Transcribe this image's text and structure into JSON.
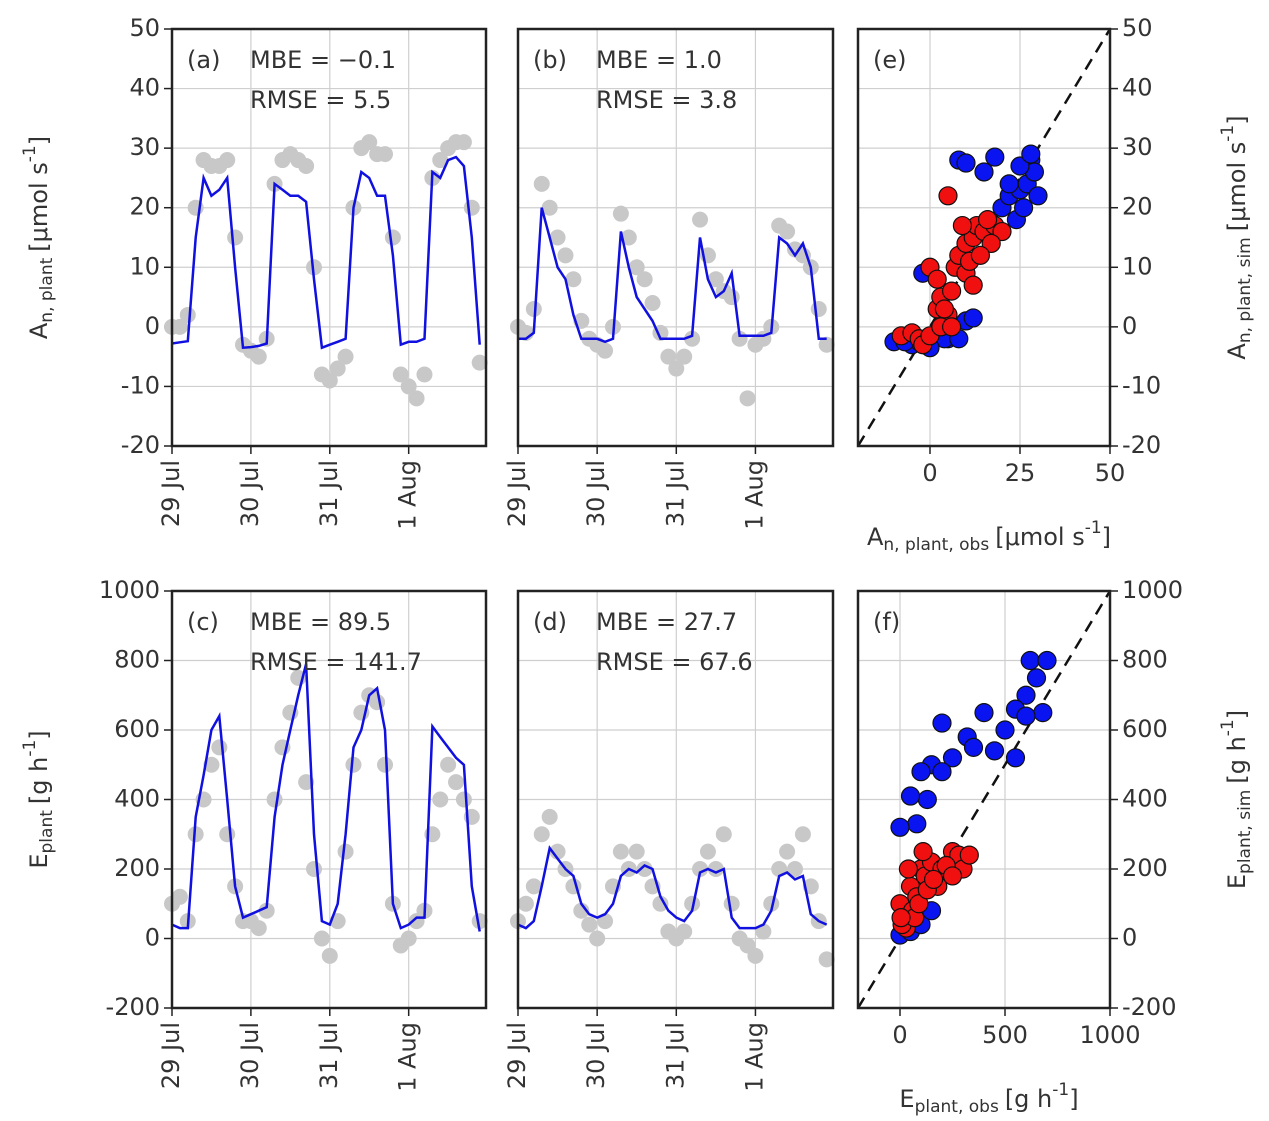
{
  "chart_data": [
    {
      "type": "line",
      "yaxis_side": "left",
      "grid": true,
      "annotations": [
        "(a)",
        "MBE = −0.1",
        "RMSE = 5.5"
      ],
      "ylabel": {
        "base": "A",
        "sub": "n, plant",
        "unit": "[μmol s",
        "sup": "-1",
        "end": "]"
      },
      "xlim": [
        0,
        3.98
      ],
      "xticks": [
        {
          "value": 0,
          "label": "29 Jul"
        },
        {
          "value": 1,
          "label": "30 Jul"
        },
        {
          "value": 2,
          "label": "31 Jul"
        },
        {
          "value": 3,
          "label": "1 Aug"
        }
      ],
      "ylim": [
        -20,
        50
      ],
      "yticks": [
        -20,
        -10,
        0,
        10,
        20,
        30,
        40,
        50
      ],
      "x": [
        0,
        0.1,
        0.2,
        0.3,
        0.4,
        0.5,
        0.6,
        0.7,
        0.8,
        0.9,
        1,
        1.1,
        1.2,
        1.3,
        1.4,
        1.5,
        1.6,
        1.7,
        1.8,
        1.9,
        2,
        2.1,
        2.2,
        2.3,
        2.4,
        2.5,
        2.6,
        2.7,
        2.8,
        2.9,
        3,
        3.1,
        3.2,
        3.3,
        3.4,
        3.5,
        3.6,
        3.7,
        3.8,
        3.9
      ],
      "series": [
        {
          "style": "markers",
          "color": "#c8c8c8",
          "values": [
            0,
            0,
            2,
            20,
            28,
            27,
            27,
            28,
            15,
            -3,
            -4,
            -5,
            -2,
            24,
            28,
            29,
            28,
            27,
            10,
            -8,
            -9,
            -7,
            -5,
            20,
            30,
            31,
            29,
            29,
            15,
            -8,
            -10,
            -12,
            -8,
            25,
            28,
            30,
            31,
            31,
            20,
            -6
          ]
        },
        {
          "style": "line",
          "color": "#1010e0",
          "values": [
            -2.8,
            -2.6,
            -2.4,
            15,
            25,
            22,
            23,
            25,
            10,
            -3.5,
            -3.4,
            -3.2,
            -2.8,
            24,
            23,
            22,
            22,
            21,
            8,
            -3.5,
            -3,
            -2.5,
            -2,
            20,
            26,
            25,
            22,
            22,
            12,
            -3,
            -2.5,
            -2.5,
            -2,
            26,
            25,
            28,
            28.5,
            27,
            15,
            -3
          ]
        }
      ]
    },
    {
      "type": "line",
      "yaxis_side": "none",
      "grid": true,
      "annotations": [
        "(b)",
        "MBE = 1.0",
        "RMSE = 3.8"
      ],
      "xlim": [
        0,
        3.98
      ],
      "xticks": [
        {
          "value": 0,
          "label": "29 Jul"
        },
        {
          "value": 1,
          "label": "30 Jul"
        },
        {
          "value": 2,
          "label": "31 Jul"
        },
        {
          "value": 3,
          "label": "1 Aug"
        }
      ],
      "ylim": [
        -20,
        50
      ],
      "yticks": [
        -20,
        -10,
        0,
        10,
        20,
        30,
        40,
        50
      ],
      "x": [
        0,
        0.1,
        0.2,
        0.3,
        0.4,
        0.5,
        0.6,
        0.7,
        0.8,
        0.9,
        1,
        1.1,
        1.2,
        1.3,
        1.4,
        1.5,
        1.6,
        1.7,
        1.8,
        1.9,
        2,
        2.1,
        2.2,
        2.3,
        2.4,
        2.5,
        2.6,
        2.7,
        2.8,
        2.9,
        3,
        3.1,
        3.2,
        3.3,
        3.4,
        3.5,
        3.6,
        3.7,
        3.8,
        3.9
      ],
      "series": [
        {
          "style": "markers",
          "color": "#c8c8c8",
          "values": [
            0,
            -1,
            3,
            24,
            20,
            15,
            12,
            8,
            1,
            -2,
            -3,
            -4,
            0,
            19,
            15,
            10,
            8,
            4,
            -1,
            -5,
            -7,
            -5,
            -2,
            18,
            12,
            8,
            6,
            5,
            -2,
            -12,
            -3,
            -2,
            0,
            17,
            16,
            13,
            12,
            10,
            3,
            -3
          ]
        },
        {
          "style": "line",
          "color": "#1010e0",
          "values": [
            -2,
            -2,
            -1,
            20,
            15,
            10,
            8,
            2,
            -2,
            -2,
            -2,
            -2.5,
            -2,
            16,
            10,
            5,
            3,
            1,
            -2,
            -2,
            -2,
            -2,
            -1.5,
            15,
            8,
            5,
            6,
            9,
            -1.5,
            -1.5,
            -1.5,
            -1.5,
            -1,
            15,
            14,
            12,
            14,
            10,
            -2,
            -2
          ]
        }
      ]
    },
    {
      "type": "scatter",
      "yaxis_side": "right",
      "grid": true,
      "diagonal": true,
      "annotations": [
        "(e)"
      ],
      "ylabel": {
        "base": "A",
        "sub": "n, plant, sim",
        "unit": "[μmol s",
        "sup": "-1",
        "end": "]"
      },
      "xlabel": {
        "base": "A",
        "sub": "n, plant, obs",
        "unit": "[μmol s",
        "sup": "-1",
        "end": "]"
      },
      "xlim": [
        -20,
        50
      ],
      "xticks": [
        0,
        25,
        50
      ],
      "ylim": [
        -20,
        50
      ],
      "yticks": [
        -20,
        -10,
        0,
        10,
        20,
        30,
        40,
        50
      ],
      "series": [
        {
          "color": "#0a14f0",
          "x": [
            -10,
            -5,
            -3,
            0,
            -2,
            10,
            12,
            5,
            8,
            10,
            18,
            15,
            20,
            22,
            25,
            27,
            28,
            29,
            24,
            22,
            25,
            30,
            26,
            28,
            4,
            8,
            -7,
            0,
            15
          ],
          "values": [
            -2.5,
            -3,
            -2.5,
            -2,
            9,
            1,
            1.5,
            -2,
            28,
            27.5,
            28.5,
            26,
            20,
            22,
            23,
            24,
            28,
            26,
            18,
            24,
            27,
            22,
            20,
            29,
            -2,
            -2,
            -2.5,
            -3.5,
            16
          ]
        },
        {
          "color": "#f01010",
          "x": [
            -8,
            -5,
            -3,
            -2,
            0,
            2,
            3,
            5,
            6,
            5,
            7,
            8,
            10,
            12,
            13,
            15,
            10,
            11,
            3,
            4,
            0,
            2,
            18,
            20,
            17,
            14,
            9,
            16,
            12,
            6
          ],
          "values": [
            -1.5,
            -1,
            -2,
            -3,
            -1.5,
            3,
            5,
            2,
            6,
            22,
            10,
            12,
            14,
            15,
            17,
            16,
            9,
            11,
            0,
            3,
            10,
            8,
            17,
            16,
            14,
            12,
            17,
            18,
            7,
            0
          ]
        }
      ]
    },
    {
      "type": "line",
      "yaxis_side": "left",
      "grid": true,
      "annotations": [
        "(c)",
        "MBE = 89.5",
        "RMSE = 141.7"
      ],
      "ylabel": {
        "base": "E",
        "sub": "plant",
        "unit": "[g h",
        "sup": "-1",
        "end": "]"
      },
      "xlim": [
        0,
        3.98
      ],
      "xticks": [
        {
          "value": 0,
          "label": "29 Jul"
        },
        {
          "value": 1,
          "label": "30 Jul"
        },
        {
          "value": 2,
          "label": "31 Jul"
        },
        {
          "value": 3,
          "label": "1 Aug"
        }
      ],
      "ylim": [
        -200,
        1000
      ],
      "yticks": [
        -200,
        0,
        200,
        400,
        600,
        800,
        1000
      ],
      "x": [
        0,
        0.1,
        0.2,
        0.3,
        0.4,
        0.5,
        0.6,
        0.7,
        0.8,
        0.9,
        1,
        1.1,
        1.2,
        1.3,
        1.4,
        1.5,
        1.6,
        1.7,
        1.8,
        1.9,
        2,
        2.1,
        2.2,
        2.3,
        2.4,
        2.5,
        2.6,
        2.7,
        2.8,
        2.9,
        3,
        3.1,
        3.2,
        3.3,
        3.4,
        3.5,
        3.6,
        3.7,
        3.8,
        3.9
      ],
      "series": [
        {
          "style": "markers",
          "color": "#c8c8c8",
          "values": [
            100,
            120,
            50,
            300,
            400,
            500,
            550,
            300,
            150,
            50,
            50,
            30,
            80,
            400,
            550,
            650,
            750,
            450,
            200,
            0,
            -50,
            50,
            250,
            500,
            650,
            700,
            680,
            500,
            100,
            -20,
            0,
            50,
            80,
            300,
            400,
            500,
            450,
            400,
            350,
            50
          ]
        },
        {
          "style": "line",
          "color": "#1010e0",
          "values": [
            40,
            30,
            30,
            350,
            470,
            600,
            640,
            400,
            150,
            60,
            70,
            80,
            90,
            350,
            500,
            600,
            700,
            790,
            300,
            50,
            40,
            100,
            300,
            550,
            600,
            700,
            720,
            600,
            100,
            30,
            40,
            60,
            60,
            610,
            580,
            550,
            520,
            500,
            150,
            20
          ]
        }
      ]
    },
    {
      "type": "line",
      "yaxis_side": "none",
      "grid": true,
      "annotations": [
        "(d)",
        "MBE = 27.7",
        "RMSE = 67.6"
      ],
      "xlim": [
        0,
        3.98
      ],
      "xticks": [
        {
          "value": 0,
          "label": "29 Jul"
        },
        {
          "value": 1,
          "label": "30 Jul"
        },
        {
          "value": 2,
          "label": "31 Jul"
        },
        {
          "value": 3,
          "label": "1 Aug"
        }
      ],
      "ylim": [
        -200,
        1000
      ],
      "yticks": [
        -200,
        0,
        200,
        400,
        600,
        800,
        1000
      ],
      "x": [
        0,
        0.1,
        0.2,
        0.3,
        0.4,
        0.5,
        0.6,
        0.7,
        0.8,
        0.9,
        1,
        1.1,
        1.2,
        1.3,
        1.4,
        1.5,
        1.6,
        1.7,
        1.8,
        1.9,
        2,
        2.1,
        2.2,
        2.3,
        2.4,
        2.5,
        2.6,
        2.7,
        2.8,
        2.9,
        3,
        3.1,
        3.2,
        3.3,
        3.4,
        3.5,
        3.6,
        3.7,
        3.8,
        3.9
      ],
      "series": [
        {
          "style": "markers",
          "color": "#c8c8c8",
          "values": [
            50,
            100,
            150,
            300,
            350,
            250,
            200,
            150,
            80,
            40,
            0,
            50,
            150,
            250,
            200,
            250,
            200,
            150,
            100,
            20,
            0,
            20,
            100,
            200,
            250,
            200,
            300,
            100,
            0,
            -20,
            -50,
            20,
            100,
            200,
            250,
            200,
            300,
            150,
            50,
            -60
          ]
        },
        {
          "style": "line",
          "color": "#1010e0",
          "values": [
            40,
            30,
            50,
            150,
            260,
            230,
            200,
            180,
            100,
            70,
            60,
            70,
            100,
            180,
            200,
            190,
            210,
            200,
            120,
            80,
            60,
            50,
            80,
            190,
            200,
            190,
            200,
            60,
            30,
            30,
            30,
            40,
            80,
            180,
            190,
            170,
            180,
            70,
            50,
            40
          ]
        }
      ]
    },
    {
      "type": "scatter",
      "yaxis_side": "right",
      "grid": true,
      "diagonal": true,
      "annotations": [
        "(f)"
      ],
      "ylabel": {
        "base": "E",
        "sub": "plant, sim",
        "unit": "[g h",
        "sup": "-1",
        "end": "]"
      },
      "xlabel": {
        "base": "E",
        "sub": "plant, obs",
        "unit": "[g h",
        "sup": "-1",
        "end": "]"
      },
      "xlim": [
        -200,
        1000
      ],
      "xticks": [
        0,
        500,
        1000
      ],
      "ylim": [
        -200,
        1000
      ],
      "yticks": [
        -200,
        0,
        200,
        400,
        600,
        800,
        1000
      ],
      "series": [
        {
          "color": "#0a14f0",
          "x": [
            620,
            700,
            650,
            600,
            680,
            550,
            400,
            200,
            320,
            500,
            450,
            550,
            350,
            150,
            250,
            100,
            130,
            50,
            80,
            0,
            200,
            600,
            20,
            0,
            50,
            100,
            150
          ],
          "values": [
            800,
            800,
            750,
            700,
            650,
            660,
            650,
            620,
            580,
            600,
            540,
            520,
            550,
            500,
            520,
            480,
            400,
            410,
            330,
            320,
            480,
            640,
            30,
            10,
            20,
            40,
            80
          ]
        },
        {
          "color": "#f01010",
          "x": [
            0,
            20,
            50,
            80,
            100,
            120,
            150,
            180,
            200,
            250,
            280,
            300,
            330,
            60,
            30,
            10,
            70,
            40,
            90,
            130,
            220,
            110,
            160,
            250,
            5
          ],
          "values": [
            100,
            50,
            150,
            120,
            200,
            180,
            220,
            150,
            200,
            250,
            240,
            200,
            240,
            80,
            30,
            40,
            60,
            200,
            100,
            140,
            210,
            250,
            170,
            180,
            60
          ]
        }
      ]
    }
  ]
}
